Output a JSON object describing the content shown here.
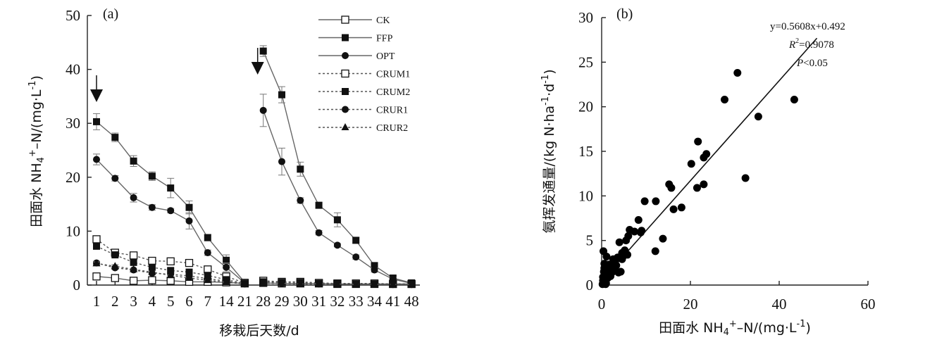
{
  "chart_data": [
    {
      "type": "line",
      "panel_label": "(a)",
      "xlabel": "移栽后天数/d",
      "ylabel": "田面水 NH4+-N/(mg·L-1)",
      "categories": [
        "1",
        "2",
        "3",
        "4",
        "5",
        "6",
        "7",
        "14",
        "21",
        "28",
        "29",
        "30",
        "31",
        "32",
        "33",
        "34",
        "41",
        "48"
      ],
      "ylim": [
        0,
        50
      ],
      "yticks": [
        "0",
        "10",
        "20",
        "30",
        "40",
        "50"
      ],
      "fertilization_arrows_at": [
        "1",
        "28"
      ],
      "legend_position": "top-right",
      "series": [
        {
          "name": "CK",
          "marker": "open-square",
          "line": "solid",
          "values": [
            1.6,
            1.3,
            0.8,
            0.9,
            0.8,
            0.6,
            0.6,
            0.5,
            0.3,
            0.4,
            0.3,
            0.3,
            0.3,
            0.2,
            0.2,
            0.2,
            0.2,
            0.2
          ],
          "errors": [
            0.2,
            0.1,
            0.1,
            0.1,
            0.1,
            0.1,
            0.1,
            0.1,
            0.1,
            0.1,
            0.1,
            0.1,
            0.1,
            0.1,
            0.1,
            0.1,
            0.1,
            0.1
          ]
        },
        {
          "name": "FFP",
          "marker": "filled-square",
          "line": "solid",
          "values": [
            30.3,
            27.4,
            23.0,
            20.2,
            18.0,
            14.4,
            8.8,
            4.6,
            0.5,
            43.4,
            35.3,
            21.5,
            14.8,
            12.1,
            8.3,
            3.6,
            1.3,
            0.4
          ],
          "errors": [
            1.5,
            0.8,
            1.0,
            0.8,
            1.8,
            1.2,
            0.6,
            1.0,
            0.2,
            1.0,
            1.5,
            1.3,
            0.5,
            1.3,
            0.5,
            0.6,
            0.4,
            0.2
          ]
        },
        {
          "name": "OPT",
          "marker": "filled-circle",
          "line": "solid",
          "values": [
            23.3,
            19.8,
            16.2,
            14.4,
            13.8,
            11.9,
            6.0,
            3.3,
            0.4,
            32.4,
            22.9,
            15.7,
            9.7,
            7.4,
            5.2,
            2.8,
            1.1,
            0.3
          ],
          "errors": [
            1.0,
            0.5,
            0.8,
            0.5,
            0.4,
            1.5,
            0.5,
            0.8,
            0.2,
            3.0,
            2.5,
            0.5,
            0.4,
            0.3,
            0.4,
            0.4,
            0.3,
            0.2
          ]
        },
        {
          "name": "CRUM1",
          "marker": "open-square",
          "line": "dotted",
          "values": [
            8.5,
            6.0,
            5.5,
            4.5,
            4.4,
            4.1,
            2.9,
            1.6,
            0.4,
            0.8,
            0.6,
            0.6,
            0.4,
            0.3,
            0.3,
            0.3,
            0.2,
            0.2
          ],
          "errors": [
            0.5,
            0.4,
            0.4,
            0.4,
            0.3,
            0.3,
            0.3,
            0.2,
            0.1,
            0.1,
            0.1,
            0.1,
            0.1,
            0.1,
            0.1,
            0.1,
            0.1,
            0.1
          ]
        },
        {
          "name": "CRUM2",
          "marker": "filled-square",
          "line": "dotted",
          "values": [
            7.2,
            5.6,
            4.2,
            3.3,
            2.7,
            2.4,
            1.8,
            1.0,
            0.3,
            0.6,
            0.5,
            0.5,
            0.3,
            0.3,
            0.2,
            0.2,
            0.2,
            0.2
          ],
          "errors": [
            0.5,
            0.4,
            0.4,
            0.3,
            0.3,
            0.3,
            0.2,
            0.2,
            0.1,
            0.1,
            0.1,
            0.1,
            0.1,
            0.1,
            0.1,
            0.1,
            0.1,
            0.1
          ]
        },
        {
          "name": "CRUR1",
          "marker": "filled-circle",
          "line": "dotted",
          "values": [
            4.1,
            3.2,
            2.8,
            2.2,
            2.0,
            1.7,
            1.2,
            0.7,
            0.2,
            0.4,
            0.3,
            0.3,
            0.2,
            0.2,
            0.2,
            0.2,
            0.1,
            0.1
          ],
          "errors": [
            0.3,
            0.3,
            0.2,
            0.2,
            0.2,
            0.2,
            0.2,
            0.1,
            0.1,
            0.1,
            0.1,
            0.1,
            0.1,
            0.1,
            0.1,
            0.1,
            0.1,
            0.1
          ]
        },
        {
          "name": "CRUR2",
          "marker": "filled-triangle",
          "line": "dotted",
          "values": [
            4.0,
            3.5,
            2.9,
            2.4,
            1.8,
            1.3,
            0.9,
            0.5,
            0.2,
            0.3,
            0.3,
            0.2,
            0.2,
            0.2,
            0.1,
            0.1,
            0.1,
            0.1
          ],
          "errors": [
            0.3,
            0.3,
            0.2,
            0.2,
            0.2,
            0.2,
            0.1,
            0.1,
            0.1,
            0.1,
            0.1,
            0.1,
            0.1,
            0.1,
            0.1,
            0.1,
            0.1,
            0.1
          ]
        }
      ]
    },
    {
      "type": "scatter",
      "panel_label": "(b)",
      "xlabel": "田面水 NH4+-N/(mg·L-1)",
      "ylabel": "氨挥发通量/(kg N·ha-1·d-1)",
      "xlim": [
        0,
        60
      ],
      "ylim": [
        0,
        30
      ],
      "xticks": [
        "0",
        "20",
        "40",
        "60"
      ],
      "yticks": [
        "0",
        "5",
        "10",
        "15",
        "20",
        "25",
        "30"
      ],
      "fit_line": {
        "slope": 0.5608,
        "intercept": 0.492
      },
      "annotations": {
        "equation": "y=0.5608x+0.492",
        "r2": "R²=0.9078",
        "p": "P<0.05"
      },
      "points": [
        [
          43.4,
          20.8
        ],
        [
          35.3,
          18.9
        ],
        [
          32.4,
          12.0
        ],
        [
          30.6,
          23.8
        ],
        [
          27.7,
          20.8
        ],
        [
          23.6,
          14.7
        ],
        [
          23.0,
          14.3
        ],
        [
          23.0,
          11.3
        ],
        [
          21.7,
          16.1
        ],
        [
          21.5,
          10.9
        ],
        [
          20.2,
          13.6
        ],
        [
          18.0,
          8.7
        ],
        [
          16.2,
          8.5
        ],
        [
          15.7,
          10.9
        ],
        [
          15.2,
          11.3
        ],
        [
          13.8,
          5.2
        ],
        [
          12.2,
          9.4
        ],
        [
          12.1,
          3.8
        ],
        [
          9.7,
          9.4
        ],
        [
          9.0,
          6.1
        ],
        [
          8.8,
          5.9
        ],
        [
          8.3,
          7.3
        ],
        [
          7.4,
          6.0
        ],
        [
          6.3,
          6.2
        ],
        [
          6.0,
          5.5
        ],
        [
          5.8,
          3.4
        ],
        [
          5.5,
          5.0
        ],
        [
          5.2,
          3.9
        ],
        [
          4.6,
          2.9
        ],
        [
          4.6,
          3.6
        ],
        [
          4.3,
          1.5
        ],
        [
          4.0,
          4.8
        ],
        [
          3.6,
          3.1
        ],
        [
          3.3,
          2.2
        ],
        [
          3.0,
          2.6
        ],
        [
          2.9,
          1.9
        ],
        [
          2.5,
          1.5
        ],
        [
          2.2,
          1.6
        ],
        [
          2.0,
          1.0
        ],
        [
          1.8,
          1.3
        ],
        [
          1.6,
          2.3
        ],
        [
          1.3,
          1.7
        ],
        [
          1.1,
          3.2
        ],
        [
          0.9,
          0.6
        ],
        [
          0.8,
          1.2
        ],
        [
          0.6,
          1.9
        ],
        [
          0.5,
          0.3
        ],
        [
          0.4,
          0.2
        ],
        [
          0.3,
          0.5
        ],
        [
          0.2,
          0.1
        ],
        [
          0.4,
          3.8
        ],
        [
          0.6,
          2.4
        ],
        [
          0.9,
          0.1
        ],
        [
          0.3,
          0.9
        ],
        [
          0.5,
          1.5
        ],
        [
          1.0,
          0.2
        ],
        [
          1.4,
          0.8
        ],
        [
          2.6,
          2.9
        ],
        [
          3.8,
          1.4
        ],
        [
          4.8,
          3.2
        ]
      ]
    }
  ]
}
